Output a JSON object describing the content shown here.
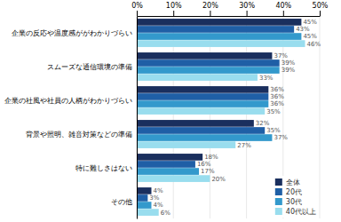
{
  "chart_data": {
    "type": "bar",
    "orientation": "horizontal",
    "categories": [
      "企業の反応や温度感ががわかりづらい",
      "スムーズな通信環境の準備",
      "企業の社風や社員の人柄がわかりづらい",
      "背景や照明、雑音対策などの準備",
      "特に難しさはない",
      "その他"
    ],
    "series": [
      {
        "name": "全体",
        "color": "#1a2f5e",
        "values": [
          45,
          37,
          36,
          32,
          18,
          4
        ],
        "value_labels": [
          "45%",
          "37%",
          "36%",
          "32%",
          "18%",
          "4%"
        ]
      },
      {
        "name": "20代",
        "color": "#1f5fa6",
        "values": [
          43,
          39,
          36,
          35,
          16,
          3
        ],
        "value_labels": [
          "43%",
          "39%",
          "36%",
          "35%",
          "16%",
          "3%"
        ]
      },
      {
        "name": "30代",
        "color": "#3399cc",
        "values": [
          45,
          39,
          36,
          37,
          17,
          4
        ],
        "value_labels": [
          "45%",
          "39%",
          "36%",
          "37%",
          "17%",
          "4%"
        ]
      },
      {
        "name": "40代以上",
        "color": "#99ddee",
        "values": [
          46,
          33,
          35,
          27,
          20,
          6
        ],
        "value_labels": [
          "46%",
          "33%",
          "35%",
          "27%",
          "20%",
          "6%"
        ]
      }
    ],
    "xlim": [
      0,
      50
    ],
    "xticks": [
      {
        "value": 0,
        "label": "0%"
      },
      {
        "value": 10,
        "label": "10%"
      },
      {
        "value": 20,
        "label": "20%"
      },
      {
        "value": 30,
        "label": "30%"
      },
      {
        "value": 40,
        "label": "40%"
      },
      {
        "value": 50,
        "label": "50%"
      }
    ],
    "grid": true,
    "legend": "lower right",
    "data_labels": true
  }
}
